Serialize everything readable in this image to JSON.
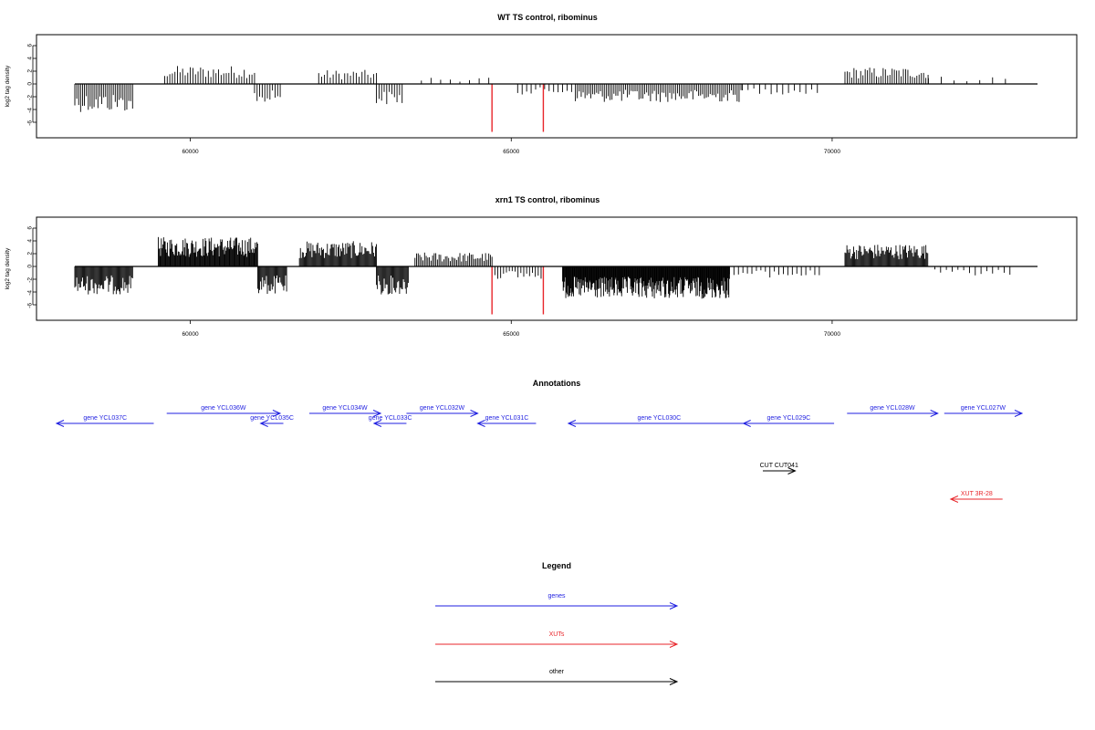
{
  "chart_data": [
    {
      "type": "bar",
      "title": "WT TS control, ribominus",
      "xlabel": "",
      "ylabel": "log2 tag density",
      "xlim": [
        57600,
        72800
      ],
      "ylim": [
        -8,
        7
      ],
      "x_ticks": [
        60000,
        65000,
        70000
      ],
      "y_ticks": [
        -6,
        -4,
        -2,
        0,
        2,
        4,
        6
      ],
      "baseline": [
        58200,
        73200
      ],
      "segments": [
        {
          "x0": 58200,
          "x1": 59100,
          "sign": -1,
          "amp": 4.0,
          "step": 30
        },
        {
          "x0": 59600,
          "x1": 61000,
          "sign": 1,
          "amp": 2.6,
          "step": 40
        },
        {
          "x0": 61000,
          "x1": 61400,
          "sign": -1,
          "amp": 2.8,
          "step": 40
        },
        {
          "x0": 62000,
          "x1": 62900,
          "sign": 1,
          "amp": 2.0,
          "step": 45
        },
        {
          "x0": 62900,
          "x1": 63300,
          "sign": -1,
          "amp": 3.0,
          "step": 40
        },
        {
          "x0": 63600,
          "x1": 64700,
          "sign": 1,
          "amp": 1.0,
          "step": 150
        },
        {
          "x0": 65100,
          "x1": 66000,
          "sign": -1,
          "amp": 1.5,
          "step": 70
        },
        {
          "x0": 66000,
          "x1": 68600,
          "sign": -1,
          "amp": 2.6,
          "step": 30
        },
        {
          "x0": 68600,
          "x1": 69800,
          "sign": -1,
          "amp": 1.5,
          "step": 90
        },
        {
          "x0": 70200,
          "x1": 71500,
          "sign": 1,
          "amp": 2.4,
          "step": 35
        },
        {
          "x0": 71500,
          "x1": 72800,
          "sign": 1,
          "amp": 1.1,
          "step": 200
        }
      ],
      "highlight_bars": [
        {
          "x": 64700,
          "y": -7.5
        },
        {
          "x": 65500,
          "y": -7.5
        }
      ],
      "highlight_color": "#e8262b"
    },
    {
      "type": "bar",
      "title": "xrn1 TS control, ribominus",
      "xlabel": "",
      "ylabel": "log2 tag density",
      "xlim": [
        57600,
        72800
      ],
      "ylim": [
        -8,
        7
      ],
      "x_ticks": [
        60000,
        65000,
        70000
      ],
      "y_ticks": [
        -6,
        -4,
        -2,
        0,
        2,
        4,
        6
      ],
      "baseline": [
        58200,
        73200
      ],
      "segments": [
        {
          "x0": 58200,
          "x1": 59100,
          "sign": -1,
          "amp": 4.0,
          "step": 15
        },
        {
          "x0": 59500,
          "x1": 61050,
          "sign": 1,
          "amp": 4.2,
          "step": 12
        },
        {
          "x0": 61050,
          "x1": 61500,
          "sign": -1,
          "amp": 4.0,
          "step": 15
        },
        {
          "x0": 61700,
          "x1": 62900,
          "sign": 1,
          "amp": 3.6,
          "step": 15
        },
        {
          "x0": 62900,
          "x1": 63400,
          "sign": -1,
          "amp": 4.0,
          "step": 15
        },
        {
          "x0": 63500,
          "x1": 64700,
          "sign": 1,
          "amp": 2.0,
          "step": 25
        },
        {
          "x0": 64700,
          "x1": 65500,
          "sign": -1,
          "amp": 1.8,
          "step": 45
        },
        {
          "x0": 65800,
          "x1": 68400,
          "sign": -1,
          "amp": 4.6,
          "step": 10
        },
        {
          "x0": 68400,
          "x1": 69800,
          "sign": -1,
          "amp": 1.6,
          "step": 70
        },
        {
          "x0": 70200,
          "x1": 71500,
          "sign": 1,
          "amp": 3.2,
          "step": 15
        },
        {
          "x0": 71600,
          "x1": 72800,
          "sign": -1,
          "amp": 1.3,
          "step": 90
        }
      ],
      "highlight_bars": [
        {
          "x": 64700,
          "y": -7.5
        },
        {
          "x": 65500,
          "y": -7.5
        }
      ],
      "highlight_color": "#e8262b"
    }
  ],
  "annotations": {
    "title": "Annotations",
    "items": [
      {
        "label": "gene YCL037C",
        "color": "#1f1fe0",
        "x0": 57900,
        "x1": 59400,
        "dir": "left",
        "row": 2
      },
      {
        "label": "gene YCL036W",
        "color": "#1f1fe0",
        "x0": 59600,
        "x1": 61350,
        "dir": "right",
        "row": 1
      },
      {
        "label": "gene YCL035C",
        "color": "#1f1fe0",
        "x0": 61050,
        "x1": 61400,
        "dir": "left",
        "row": 2
      },
      {
        "label": "gene YCL034W",
        "color": "#1f1fe0",
        "x0": 61800,
        "x1": 62900,
        "dir": "right",
        "row": 1
      },
      {
        "label": "gene YCL033C",
        "color": "#1f1fe0",
        "x0": 62800,
        "x1": 63300,
        "dir": "left",
        "row": 2
      },
      {
        "label": "gene YCL032W",
        "color": "#1f1fe0",
        "x0": 63300,
        "x1": 64400,
        "dir": "right",
        "row": 1
      },
      {
        "label": "gene YCL031C",
        "color": "#1f1fe0",
        "x0": 64400,
        "x1": 65300,
        "dir": "left",
        "row": 2
      },
      {
        "label": "gene YCL030C",
        "color": "#1f1fe0",
        "x0": 65800,
        "x1": 68600,
        "dir": "left",
        "row": 2
      },
      {
        "label": "gene YCL029C",
        "color": "#1f1fe0",
        "x0": 68500,
        "x1": 69900,
        "dir": "left",
        "row": 2
      },
      {
        "label": "gene YCL028W",
        "color": "#1f1fe0",
        "x0": 70100,
        "x1": 71500,
        "dir": "right",
        "row": 1
      },
      {
        "label": "gene YCL027W",
        "color": "#1f1fe0",
        "x0": 71600,
        "x1": 72800,
        "dir": "right",
        "row": 1
      },
      {
        "label": "CUT CUT041",
        "color": "#000000",
        "x0": 68800,
        "x1": 69300,
        "dir": "right",
        "row": 3
      },
      {
        "label": "XUT 3R-28",
        "color": "#e8262b",
        "x0": 71700,
        "x1": 72500,
        "dir": "left",
        "row": 4
      }
    ]
  },
  "legend": {
    "title": "Legend",
    "items": [
      {
        "label": "genes",
        "color": "#1f1fe0"
      },
      {
        "label": "XUTs",
        "color": "#e8262b"
      },
      {
        "label": "other",
        "color": "#000000"
      }
    ]
  }
}
